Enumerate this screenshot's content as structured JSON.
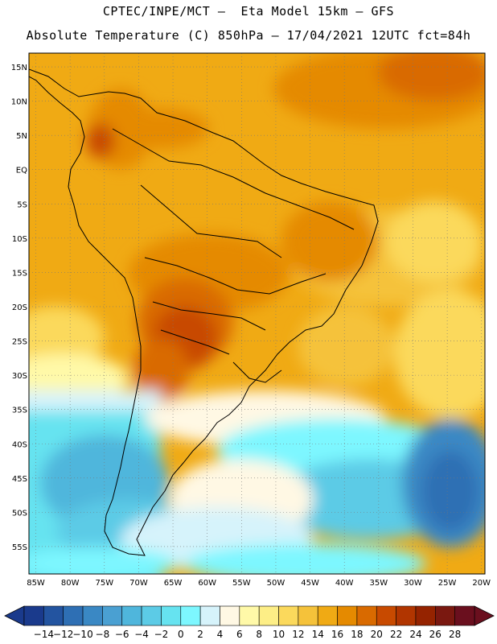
{
  "header": {
    "line1": "CPTEC/INPE/MCT –  Eta Model 15km – GFS",
    "line2": "Absolute Temperature (C) 850hPa – 17/04/2021 12UTC fct=84h"
  },
  "map": {
    "lon_range": [
      -86,
      -19.5
    ],
    "lat_range": [
      -59,
      17
    ],
    "lat_ticks": [
      {
        "v": 15,
        "label": "15N"
      },
      {
        "v": 10,
        "label": "10N"
      },
      {
        "v": 5,
        "label": "5N"
      },
      {
        "v": 0,
        "label": "EQ"
      },
      {
        "v": -5,
        "label": "5S"
      },
      {
        "v": -10,
        "label": "10S"
      },
      {
        "v": -15,
        "label": "15S"
      },
      {
        "v": -20,
        "label": "20S"
      },
      {
        "v": -25,
        "label": "25S"
      },
      {
        "v": -30,
        "label": "30S"
      },
      {
        "v": -35,
        "label": "35S"
      },
      {
        "v": -40,
        "label": "40S"
      },
      {
        "v": -45,
        "label": "45S"
      },
      {
        "v": -50,
        "label": "50S"
      },
      {
        "v": -55,
        "label": "55S"
      }
    ],
    "lon_ticks": [
      {
        "v": -85,
        "label": "85W"
      },
      {
        "v": -80,
        "label": "80W"
      },
      {
        "v": -75,
        "label": "75W"
      },
      {
        "v": -70,
        "label": "70W"
      },
      {
        "v": -65,
        "label": "65W"
      },
      {
        "v": -60,
        "label": "60W"
      },
      {
        "v": -55,
        "label": "55W"
      },
      {
        "v": -50,
        "label": "50W"
      },
      {
        "v": -45,
        "label": "45W"
      },
      {
        "v": -40,
        "label": "40W"
      },
      {
        "v": -35,
        "label": "35W"
      },
      {
        "v": -30,
        "label": "30W"
      },
      {
        "v": -25,
        "label": "25W"
      },
      {
        "v": -20,
        "label": "20W"
      }
    ]
  },
  "colorbar": {
    "colors": [
      "#1a3a8c",
      "#2354a0",
      "#2e6fb4",
      "#3a88c4",
      "#4aa0d2",
      "#4fb6dc",
      "#5ccbe6",
      "#66e3f0",
      "#7df7ff",
      "#d6f3fb",
      "#fff8e4",
      "#fff9a8",
      "#fdee86",
      "#fbd95c",
      "#f5c23a",
      "#f0aa14",
      "#e58a00",
      "#d96a00",
      "#c84a00",
      "#b13500",
      "#952300",
      "#7a1810",
      "#6a0f1e"
    ],
    "labels": [
      "-14",
      "-12",
      "-10",
      "-8",
      "-6",
      "-4",
      "-2",
      "0",
      "2",
      "4",
      "6",
      "8",
      "10",
      "12",
      "14",
      "16",
      "18",
      "20",
      "22",
      "24",
      "26",
      "28"
    ]
  }
}
